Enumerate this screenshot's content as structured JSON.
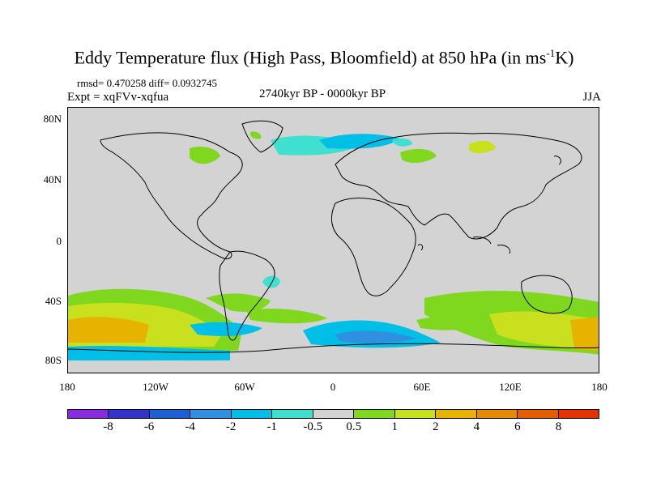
{
  "title": "Eddy Temperature flux (High Pass, Bloomfield) at 850 hPa (in ms",
  "title_sup": "-1",
  "title_end": "K)",
  "stats": "rmsd= 0.470258 diff= 0.0932745",
  "expt": "Expt = xqFVv-xqfua",
  "period": "2740kyr BP - 0000kyr BP",
  "season": "JJA",
  "y_ticks": [
    "80N",
    "40N",
    "0",
    "40S",
    "80S"
  ],
  "x_ticks": [
    "180",
    "120W",
    "60W",
    "0",
    "60E",
    "120E",
    "180"
  ],
  "colorbar": {
    "levels": [
      "-8",
      "-6",
      "-4",
      "-2",
      "-1",
      "-0.5",
      "0.5",
      "1",
      "2",
      "4",
      "6",
      "8"
    ],
    "colors": [
      "#8a2be2",
      "#3333cc",
      "#1f5fd6",
      "#2f8fe0",
      "#00bfe6",
      "#40e0d0",
      "#d3d3d3",
      "#7fd81e",
      "#c8e01e",
      "#e6b400",
      "#e68a00",
      "#e65c00",
      "#e63200"
    ]
  },
  "colors": {
    "ocean_land_background": "#d3d3d3",
    "coastline": "#000000"
  }
}
